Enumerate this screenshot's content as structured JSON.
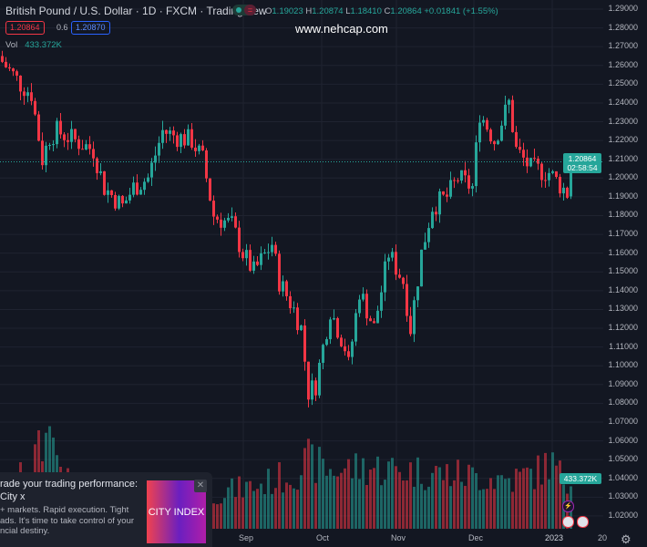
{
  "header": {
    "title": "British Pound / U.S. Dollar · 1D · FXCM · TradingView",
    "ohlc": {
      "o_label": "O",
      "o": "1.19023",
      "h_label": "H",
      "h": "1.20874",
      "l_label": "L",
      "l": "1.18410",
      "c_label": "C",
      "c": "1.20864",
      "change": "+0.01841 (+1.55%)"
    },
    "sell_price": "1.20864",
    "spread": "0.6",
    "buy_price": "1.20870",
    "vol_label": "Vol",
    "vol_value": "433.372K",
    "watermark": "www.nehcap.com"
  },
  "price_axis": {
    "labels": [
      "1.29000",
      "1.28000",
      "1.27000",
      "1.26000",
      "1.25000",
      "1.24000",
      "1.23000",
      "1.22000",
      "1.21000",
      "1.20000",
      "1.19000",
      "1.18000",
      "1.17000",
      "1.16000",
      "1.15000",
      "1.14000",
      "1.13000",
      "1.12000",
      "1.11000",
      "1.10000",
      "1.09000",
      "1.08000",
      "1.07000",
      "1.06000",
      "1.05000",
      "1.04000",
      "1.03000",
      "1.02000"
    ],
    "current_price": "1.20864",
    "countdown": "02:58:54",
    "current_volume": "433.372K"
  },
  "time_axis": {
    "labels": [
      "Sep",
      "Oct",
      "Nov",
      "Dec",
      "2023",
      "20"
    ]
  },
  "colors": {
    "up": "#26a69a",
    "down": "#f23645",
    "background": "#131722",
    "grid": "#1f2330"
  },
  "ad": {
    "title": "rade your trading performance: City x",
    "body": "+ markets. Rapid execution. Tight ads. It's time to take control of your ncial destiny.",
    "image_text": "CITY INDEX",
    "close": "✕"
  },
  "events": {
    "bolt": "⚡",
    "flag": "US"
  },
  "chart_data": {
    "type": "candlestick",
    "title": "British Pound / U.S. Dollar · 1D · FXCM",
    "ylim": [
      1.015,
      1.293
    ],
    "close_keypoints": [
      [
        0,
        1.262
      ],
      [
        3,
        1.255
      ],
      [
        5,
        1.25
      ],
      [
        8,
        1.245
      ],
      [
        11,
        1.21
      ],
      [
        13,
        1.222
      ],
      [
        15,
        1.225
      ],
      [
        20,
        1.22
      ],
      [
        25,
        1.215
      ],
      [
        28,
        1.195
      ],
      [
        33,
        1.185
      ],
      [
        36,
        1.195
      ],
      [
        40,
        1.2
      ],
      [
        44,
        1.225
      ],
      [
        48,
        1.222
      ],
      [
        52,
        1.22
      ],
      [
        55,
        1.21
      ],
      [
        58,
        1.18
      ],
      [
        63,
        1.175
      ],
      [
        66,
        1.16
      ],
      [
        69,
        1.15
      ],
      [
        74,
        1.165
      ],
      [
        76,
        1.145
      ],
      [
        80,
        1.13
      ],
      [
        82,
        1.12
      ],
      [
        84,
        1.086
      ],
      [
        86,
        1.09
      ],
      [
        90,
        1.13
      ],
      [
        94,
        1.11
      ],
      [
        95,
        1.1
      ],
      [
        98,
        1.14
      ],
      [
        102,
        1.12
      ],
      [
        106,
        1.16
      ],
      [
        110,
        1.145
      ],
      [
        112,
        1.12
      ],
      [
        115,
        1.16
      ],
      [
        118,
        1.185
      ],
      [
        122,
        1.19
      ],
      [
        125,
        1.2
      ],
      [
        129,
        1.195
      ],
      [
        131,
        1.235
      ],
      [
        135,
        1.22
      ],
      [
        139,
        1.24
      ],
      [
        141,
        1.215
      ],
      [
        145,
        1.205
      ],
      [
        150,
        1.203
      ],
      [
        155,
        1.192
      ],
      [
        156,
        1.2086
      ]
    ],
    "volume_keypoints": [
      [
        0,
        40
      ],
      [
        20,
        45
      ],
      [
        13,
        150
      ],
      [
        40,
        50
      ],
      [
        55,
        50
      ],
      [
        60,
        60
      ],
      [
        70,
        70
      ],
      [
        80,
        90
      ],
      [
        84,
        110
      ],
      [
        90,
        95
      ],
      [
        100,
        100
      ],
      [
        110,
        95
      ],
      [
        120,
        90
      ],
      [
        130,
        85
      ],
      [
        140,
        80
      ],
      [
        148,
        95
      ],
      [
        150,
        110
      ],
      [
        156,
        65
      ]
    ],
    "volume_unit": "K (relative)"
  }
}
